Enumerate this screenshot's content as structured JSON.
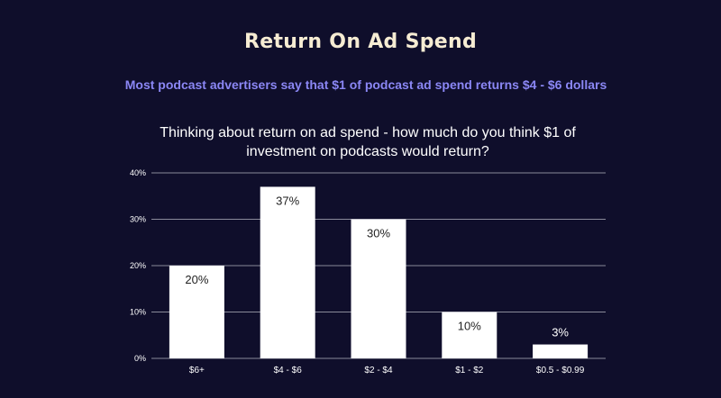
{
  "title": "Return On Ad Spend",
  "subtitle": "Most podcast advertisers say that $1 of podcast ad spend returns $4 - $6 dollars",
  "colors": {
    "background": "#0f0e2b",
    "title": "#f6ecd3",
    "subtitle": "#8b87f5",
    "bar": "#ffffff",
    "gridline": "#8a8a9a"
  },
  "chart_data": {
    "type": "bar",
    "title": "Thinking about return on ad spend - how much do you think $1 of investment on podcasts would return?",
    "categories": [
      "$6+",
      "$4 - $6",
      "$2 - $4",
      "$1 - $2",
      "$0.5 - $0.99"
    ],
    "values": [
      20,
      37,
      30,
      10,
      3
    ],
    "data_labels": [
      "20%",
      "37%",
      "30%",
      "10%",
      "3%"
    ],
    "yticks": [
      0,
      10,
      20,
      30,
      40
    ],
    "ytick_labels": [
      "0%",
      "10%",
      "20%",
      "30%",
      "40%"
    ],
    "ylim": [
      0,
      40
    ],
    "xlabel": "",
    "ylabel": "",
    "grid": true,
    "legend": "none"
  }
}
